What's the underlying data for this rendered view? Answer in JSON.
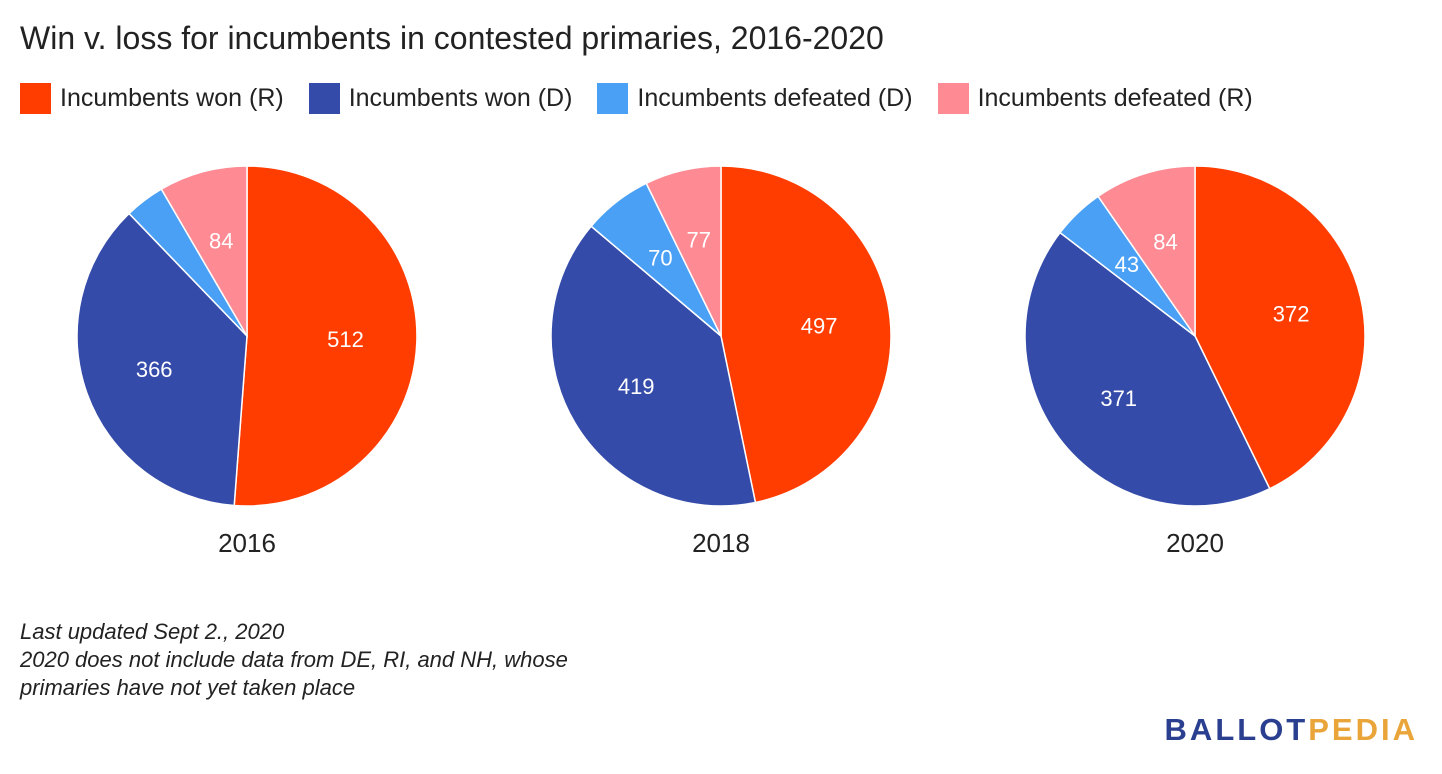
{
  "title": "Win v. loss for incumbents in contested primaries, 2016-2020",
  "legend": [
    {
      "label": "Incumbents won (R)",
      "color": "#ff3d00"
    },
    {
      "label": "Incumbents won (D)",
      "color": "#344ba9"
    },
    {
      "label": "Incumbents defeated (D)",
      "color": "#4aa0f5"
    },
    {
      "label": "Incumbents defeated (R)",
      "color": "#fe8a93"
    }
  ],
  "chart_data": [
    {
      "type": "pie",
      "xlabel": "2016",
      "slices": [
        {
          "name": "Incumbents won (R)",
          "value": 512,
          "color": "#ff3d00"
        },
        {
          "name": "Incumbents won (D)",
          "value": 366,
          "color": "#344ba9"
        },
        {
          "name": "Incumbents defeated (D)",
          "value": 38,
          "color": "#4aa0f5",
          "label_shown": false
        },
        {
          "name": "Incumbents defeated (R)",
          "value": 84,
          "color": "#fe8a93"
        }
      ]
    },
    {
      "type": "pie",
      "xlabel": "2018",
      "slices": [
        {
          "name": "Incumbents won (R)",
          "value": 497,
          "color": "#ff3d00"
        },
        {
          "name": "Incumbents won (D)",
          "value": 419,
          "color": "#344ba9"
        },
        {
          "name": "Incumbents defeated (D)",
          "value": 70,
          "color": "#4aa0f5"
        },
        {
          "name": "Incumbents defeated (R)",
          "value": 77,
          "color": "#fe8a93"
        }
      ]
    },
    {
      "type": "pie",
      "xlabel": "2020",
      "slices": [
        {
          "name": "Incumbents won (R)",
          "value": 372,
          "color": "#ff3d00"
        },
        {
          "name": "Incumbents won (D)",
          "value": 371,
          "color": "#344ba9"
        },
        {
          "name": "Incumbents defeated (D)",
          "value": 43,
          "color": "#4aa0f5"
        },
        {
          "name": "Incumbents defeated (R)",
          "value": 84,
          "color": "#fe8a93"
        }
      ]
    }
  ],
  "notes": [
    "Last updated Sept 2., 2020",
    "2020 does not include data from DE, RI, and NH, whose",
    "primaries have not yet taken place"
  ],
  "logo": {
    "part1": "BALLOT",
    "part2": "PEDIA",
    "color1": "#2a3f8f",
    "color2": "#e9a53a"
  }
}
